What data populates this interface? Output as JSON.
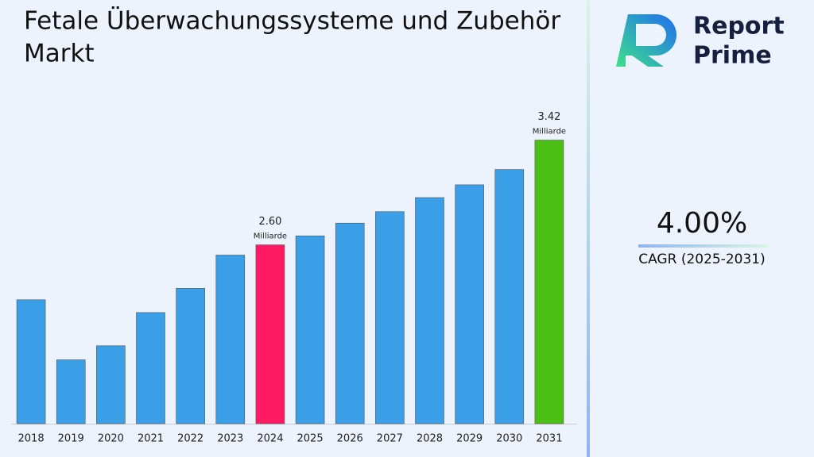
{
  "chart_data": {
    "type": "bar",
    "title": "Fetale Überwachungssysteme und Zubehör Markt",
    "categories": [
      "2018",
      "2019",
      "2020",
      "2021",
      "2022",
      "2023",
      "2024",
      "2025",
      "2026",
      "2027",
      "2028",
      "2029",
      "2030",
      "2031"
    ],
    "values": [
      2.17,
      1.7,
      1.81,
      2.07,
      2.26,
      2.52,
      2.6,
      2.67,
      2.77,
      2.86,
      2.97,
      3.07,
      3.19,
      3.42
    ],
    "value_labels": [
      null,
      null,
      null,
      null,
      null,
      null,
      "2.60",
      null,
      null,
      null,
      null,
      null,
      null,
      "3.42"
    ],
    "unit_label": "Milliarde",
    "colors": [
      "#3a9fe6",
      "#3a9fe6",
      "#3a9fe6",
      "#3a9fe6",
      "#3a9fe6",
      "#3a9fe6",
      "#fe1a62",
      "#3a9fe6",
      "#3a9fe6",
      "#3a9fe6",
      "#3a9fe6",
      "#3a9fe6",
      "#3a9fe6",
      "#4cbf14"
    ],
    "ylim": [
      1.2,
      3.7
    ],
    "grid": false
  },
  "cagr": {
    "value": "4.00%",
    "label": "CAGR (2025-2031)"
  },
  "logo": {
    "line1": "Report",
    "line2": "Prime"
  }
}
